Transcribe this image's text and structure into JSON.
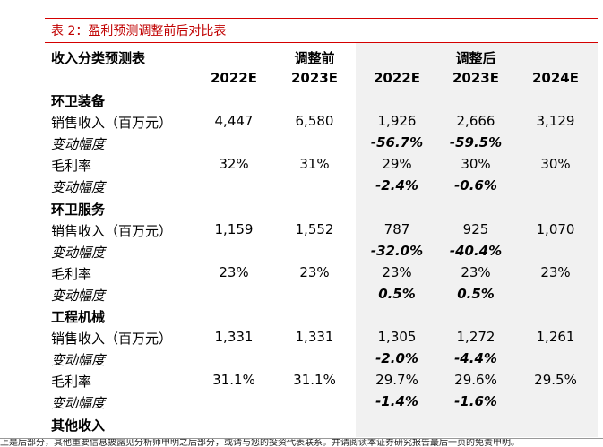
{
  "table_title": "表 2：盈利预测调整前后对比表",
  "header": {
    "row_label": "收入分类预测表",
    "group_before": "调整前",
    "group_after": "调整后",
    "years": [
      "2022E",
      "2023E",
      "2022E",
      "2023E",
      "2024E"
    ]
  },
  "rows": [
    {
      "label": "环卫装备",
      "kind": "section",
      "values": [
        "",
        "",
        "",
        "",
        ""
      ]
    },
    {
      "label": "销售收入（百万元）",
      "kind": "normal",
      "values": [
        "4,447",
        "6,580",
        "1,926",
        "2,666",
        "3,129"
      ]
    },
    {
      "label": "变动幅度",
      "kind": "change",
      "values": [
        "",
        "",
        "-56.7%",
        "-59.5%",
        ""
      ]
    },
    {
      "label": "毛利率",
      "kind": "normal",
      "values": [
        "32%",
        "31%",
        "29%",
        "30%",
        "30%"
      ]
    },
    {
      "label": "变动幅度",
      "kind": "change",
      "values": [
        "",
        "",
        "-2.4%",
        "-0.6%",
        ""
      ]
    },
    {
      "label": "环卫服务",
      "kind": "section",
      "values": [
        "",
        "",
        "",
        "",
        ""
      ]
    },
    {
      "label": "销售收入（百万元）",
      "kind": "normal",
      "values": [
        "1,159",
        "1,552",
        "787",
        "925",
        "1,070"
      ]
    },
    {
      "label": "变动幅度",
      "kind": "change",
      "values": [
        "",
        "",
        "-32.0%",
        "-40.4%",
        ""
      ]
    },
    {
      "label": "毛利率",
      "kind": "normal",
      "values": [
        "23%",
        "23%",
        "23%",
        "23%",
        "23%"
      ]
    },
    {
      "label": "变动幅度",
      "kind": "change",
      "values": [
        "",
        "",
        "0.5%",
        "0.5%",
        ""
      ]
    },
    {
      "label": "工程机械",
      "kind": "section",
      "values": [
        "",
        "",
        "",
        "",
        ""
      ]
    },
    {
      "label": "销售收入（百万元）",
      "kind": "normal",
      "values": [
        "1,331",
        "1,331",
        "1,305",
        "1,272",
        "1,261"
      ]
    },
    {
      "label": "变动幅度",
      "kind": "change",
      "values": [
        "",
        "",
        "-2.0%",
        "-4.4%",
        ""
      ]
    },
    {
      "label": "毛利率",
      "kind": "normal",
      "values": [
        "31.1%",
        "31.1%",
        "29.7%",
        "29.6%",
        "29.5%"
      ]
    },
    {
      "label": "变动幅度",
      "kind": "change",
      "values": [
        "",
        "",
        "-1.4%",
        "-1.6%",
        ""
      ]
    },
    {
      "label": "其他收入",
      "kind": "section",
      "values": [
        "",
        "",
        "",
        "",
        ""
      ]
    }
  ],
  "footer_text": "上是后部分，其他重要信息披露见分析师申明之后部分，或请与您的投资代表联系。并请阅读本证券研究报告最后一页的免责申明。"
}
